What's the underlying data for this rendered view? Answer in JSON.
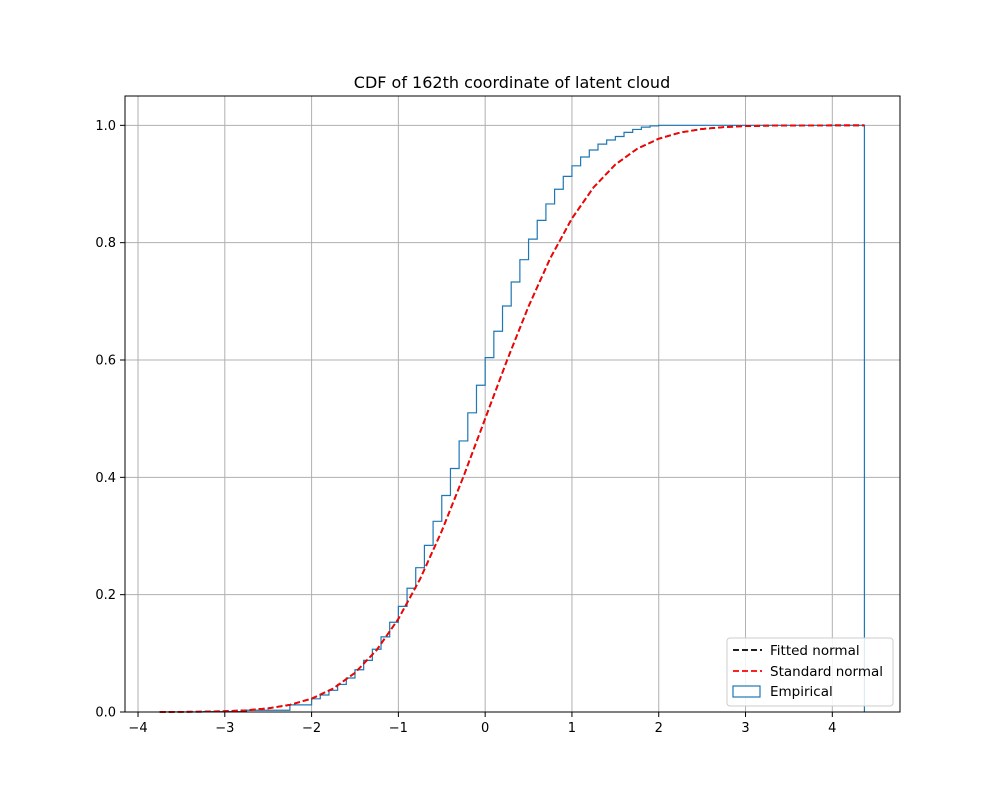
{
  "chart_data": {
    "type": "line",
    "title": "CDF of 162th coordinate of latent cloud",
    "xlabel": "",
    "ylabel": "",
    "xlim": [
      -4.15,
      4.78
    ],
    "ylim": [
      0.0,
      1.05
    ],
    "x_ticks": [
      -4,
      -3,
      -2,
      -1,
      0,
      1,
      2,
      3,
      4
    ],
    "x_tick_labels": [
      "−4",
      "−3",
      "−2",
      "−1",
      "0",
      "1",
      "2",
      "3",
      "4"
    ],
    "y_ticks": [
      0.0,
      0.2,
      0.4,
      0.6,
      0.8,
      1.0
    ],
    "y_tick_labels": [
      "0.0",
      "0.2",
      "0.4",
      "0.6",
      "0.8",
      "1.0"
    ],
    "grid": true,
    "legend_position": "lower-right",
    "legend": [
      {
        "label": "Fitted normal",
        "style": "dashed-line",
        "color": "#000000"
      },
      {
        "label": "Standard normal",
        "style": "dashed-line",
        "color": "#ff0000"
      },
      {
        "label": "Empirical",
        "style": "step-box",
        "color": "#1f77b4"
      }
    ],
    "series": [
      {
        "name": "Fitted normal",
        "kind": "line",
        "color": "#000000",
        "x": [
          -3.75,
          -3.5,
          -3.25,
          -3.0,
          -2.75,
          -2.5,
          -2.25,
          -2.0,
          -1.75,
          -1.5,
          -1.25,
          -1.0,
          -0.75,
          -0.5,
          -0.25,
          0.0,
          0.25,
          0.5,
          0.75,
          1.0,
          1.25,
          1.5,
          1.75,
          2.0,
          2.25,
          2.5,
          2.75,
          3.0,
          3.25,
          3.5,
          3.75,
          4.0,
          4.25,
          4.37
        ],
        "y": [
          0.0001,
          0.0002,
          0.0006,
          0.0014,
          0.003,
          0.0063,
          0.0122,
          0.0227,
          0.0401,
          0.0668,
          0.1056,
          0.1587,
          0.2266,
          0.3085,
          0.4013,
          0.5,
          0.5987,
          0.6915,
          0.7734,
          0.8413,
          0.8944,
          0.9332,
          0.9599,
          0.9772,
          0.9878,
          0.9938,
          0.997,
          0.9987,
          0.9994,
          0.9998,
          0.9999,
          1.0,
          1.0,
          1.0
        ]
      },
      {
        "name": "Standard normal",
        "kind": "line",
        "color": "#ff0000",
        "x": [
          -3.75,
          -3.5,
          -3.25,
          -3.0,
          -2.75,
          -2.5,
          -2.25,
          -2.0,
          -1.75,
          -1.5,
          -1.25,
          -1.0,
          -0.75,
          -0.5,
          -0.25,
          0.0,
          0.25,
          0.5,
          0.75,
          1.0,
          1.25,
          1.5,
          1.75,
          2.0,
          2.25,
          2.5,
          2.75,
          3.0,
          3.25,
          3.5,
          3.75,
          4.0,
          4.25,
          4.37
        ],
        "y": [
          0.0001,
          0.0002,
          0.0006,
          0.0013,
          0.003,
          0.0062,
          0.0122,
          0.0228,
          0.0401,
          0.0668,
          0.1056,
          0.1587,
          0.2266,
          0.3085,
          0.4013,
          0.5,
          0.5987,
          0.6915,
          0.7734,
          0.8413,
          0.8944,
          0.9332,
          0.9599,
          0.9772,
          0.9878,
          0.9938,
          0.997,
          0.9987,
          0.9994,
          0.9998,
          0.9999,
          1.0,
          1.0,
          1.0
        ]
      },
      {
        "name": "Empirical",
        "kind": "step",
        "color": "#1f77b4",
        "x": [
          -3.75,
          -3.25,
          -2.75,
          -2.25,
          -2.0,
          -1.9,
          -1.8,
          -1.7,
          -1.6,
          -1.5,
          -1.4,
          -1.3,
          -1.2,
          -1.1,
          -1.0,
          -0.9,
          -0.8,
          -0.7,
          -0.6,
          -0.5,
          -0.4,
          -0.3,
          -0.2,
          -0.1,
          0.0,
          0.1,
          0.2,
          0.3,
          0.4,
          0.5,
          0.6,
          0.7,
          0.8,
          0.9,
          1.0,
          1.1,
          1.2,
          1.3,
          1.4,
          1.5,
          1.6,
          1.7,
          1.8,
          1.9,
          2.0,
          2.25,
          2.5,
          3.0,
          3.5,
          4.0,
          4.37
        ],
        "y": [
          0.0001,
          0.0006,
          0.003,
          0.0122,
          0.0225,
          0.029,
          0.037,
          0.047,
          0.058,
          0.072,
          0.088,
          0.107,
          0.128,
          0.153,
          0.18,
          0.211,
          0.246,
          0.284,
          0.325,
          0.369,
          0.415,
          0.462,
          0.51,
          0.557,
          0.604,
          0.649,
          0.692,
          0.733,
          0.771,
          0.806,
          0.838,
          0.866,
          0.891,
          0.913,
          0.931,
          0.946,
          0.958,
          0.968,
          0.975,
          0.981,
          0.988,
          0.993,
          0.997,
          0.999,
          1.0,
          1.0,
          1.0,
          1.0,
          1.0,
          1.0,
          1.0
        ]
      }
    ]
  },
  "style": {
    "grid_color": "#b0b0b0",
    "axis_color": "#000000",
    "background": "#ffffff"
  }
}
